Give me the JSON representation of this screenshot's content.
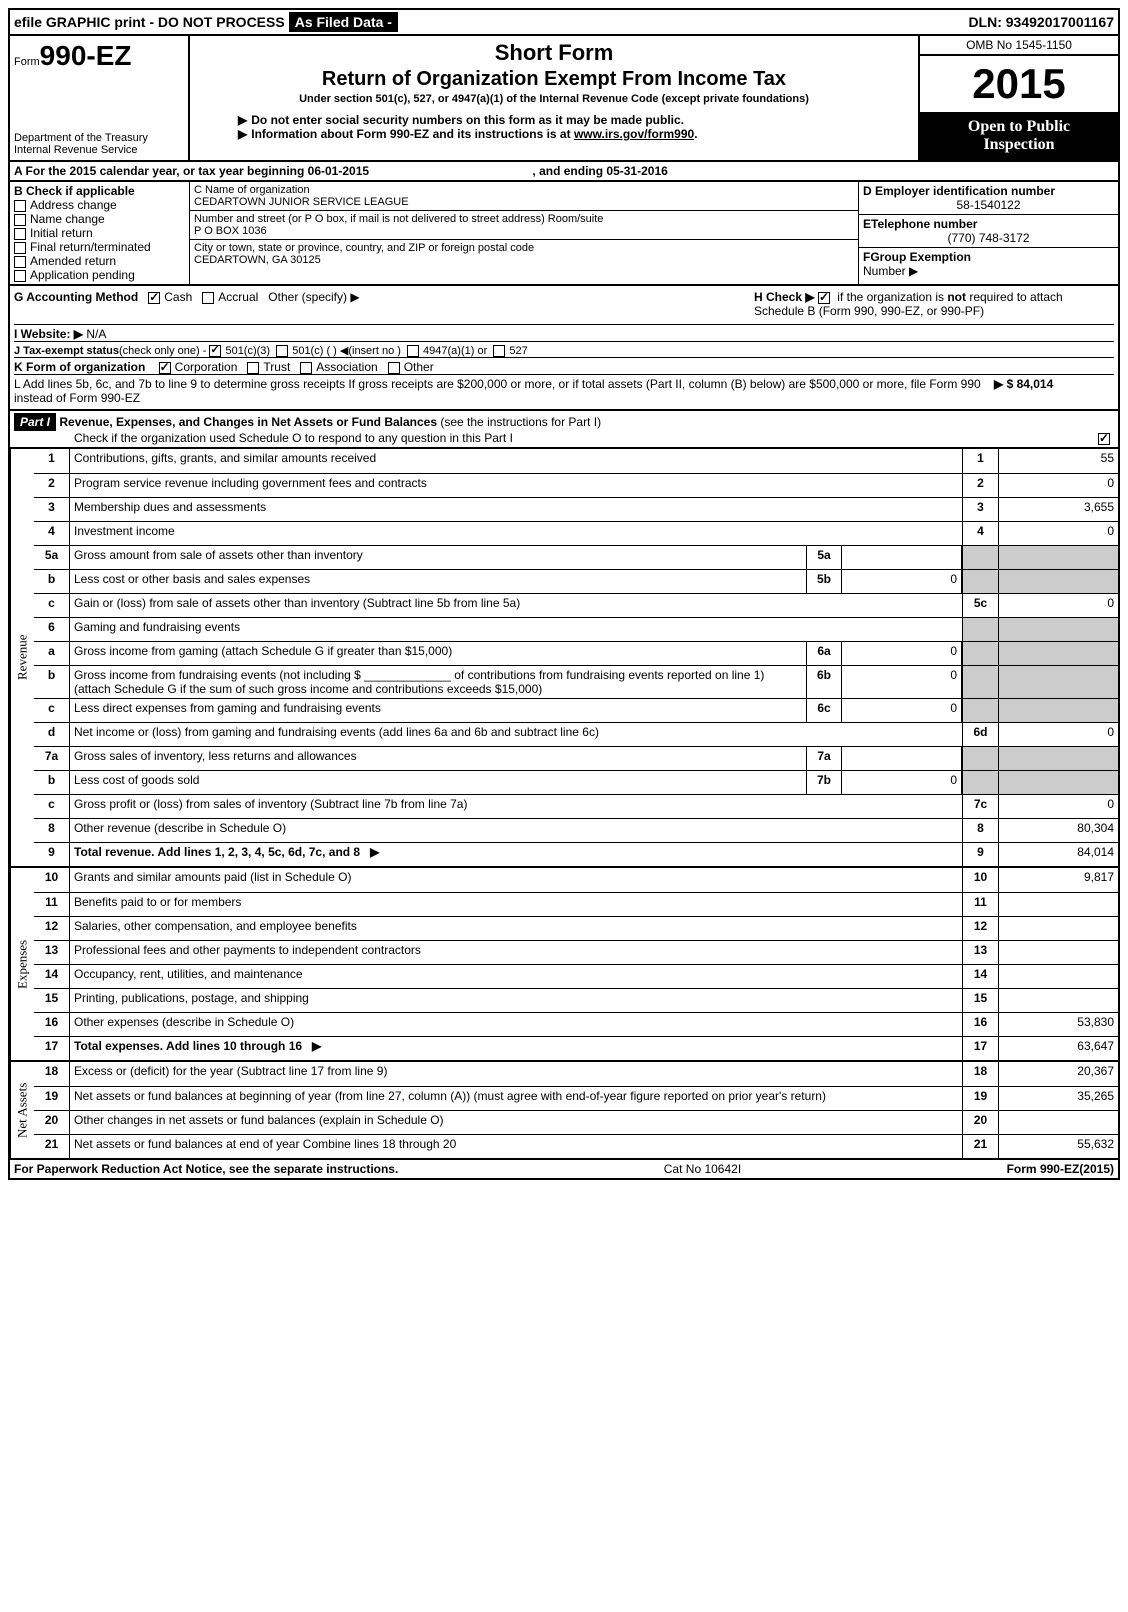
{
  "topbar": {
    "efile": "efile GRAPHIC print - DO NOT PROCESS",
    "asFiled": "As Filed Data -",
    "dln": "DLN: 93492017001167"
  },
  "header": {
    "formPrefix": "Form",
    "formNo": "990-EZ",
    "dept1": "Department of the Treasury",
    "dept2": "Internal Revenue Service",
    "shortForm": "Short Form",
    "title": "Return of Organization Exempt From Income Tax",
    "underSection": "Under section 501(c), 527, or 4947(a)(1) of the Internal Revenue Code (except private foundations)",
    "instr1": "Do not enter social security numbers on this form as it may be made public.",
    "instr2": "Information about Form 990-EZ and its instructions is at ",
    "instrLink": "www.irs.gov/form990",
    "omb": "OMB No 1545-1150",
    "year": "2015",
    "open1": "Open to Public",
    "open2": "Inspection"
  },
  "sectionA": {
    "calYear": "A  For the 2015 calendar year, or tax year beginning 06-01-2015",
    "ending": ", and ending 05-31-2016",
    "bLabel": "B  Check if applicable",
    "checks": [
      "Address change",
      "Name change",
      "Initial return",
      "Final return/terminated",
      "Amended return",
      "Application pending"
    ],
    "cNameLabel": "C Name of organization",
    "cName": "CEDARTOWN JUNIOR SERVICE LEAGUE",
    "streetLabel": "Number and street (or P O box, if mail is not delivered to street address) Room/suite",
    "street": "P O BOX 1036",
    "cityLabel": "City or town, state or province, country, and ZIP or foreign postal code",
    "city": "CEDARTOWN, GA  30125",
    "dLabel": "D Employer identification number",
    "dVal": "58-1540122",
    "eLabel": "ETelephone number",
    "eVal": "(770) 748-3172",
    "fLabel": "FGroup Exemption",
    "fLabel2": "Number    ▶"
  },
  "ghi": {
    "gLabel": "G Accounting Method",
    "cash": "Cash",
    "accrual": "Accrual",
    "other": "Other (specify) ▶",
    "hLabel": "H   Check ▶",
    "hText": "if the organization is not required to attach Schedule B (Form 990, 990-EZ, or 990-PF)",
    "iLabel": "I Website: ▶",
    "iVal": "N/A",
    "jLabel": "J Tax-exempt status",
    "jNote": "(check only one) -",
    "j1": "501(c)(3)",
    "j2": "501(c) (    ) ◀(insert no )",
    "j3": "4947(a)(1) or",
    "j4": "527",
    "kLabel": "K Form of organization",
    "kCorp": "Corporation",
    "kTrust": "Trust",
    "kAssoc": "Association",
    "kOther": "Other",
    "lText": "L Add lines 5b, 6c, and 7b to line 9 to determine gross receipts  If gross receipts are $200,000 or more, or if total assets (Part II, column (B) below) are $500,000 or more, file Form 990 instead of Form 990-EZ",
    "lVal": "▶ $ 84,014"
  },
  "part1": {
    "label": "Part I",
    "title": "Revenue, Expenses, and Changes in Net Assets or Fund Balances",
    "subtitle": "(see the instructions for Part I)",
    "checkText": "Check if the organization used Schedule O to respond to any question in this Part I"
  },
  "revenue": {
    "label": "Revenue",
    "lines": [
      {
        "n": "1",
        "desc": "Contributions, gifts, grants, and similar amounts received",
        "rn": "1",
        "rv": "55"
      },
      {
        "n": "2",
        "desc": "Program service revenue including government fees and contracts",
        "rn": "2",
        "rv": "0"
      },
      {
        "n": "3",
        "desc": "Membership dues and assessments",
        "rn": "3",
        "rv": "3,655"
      },
      {
        "n": "4",
        "desc": "Investment income",
        "rn": "4",
        "rv": "0"
      }
    ],
    "l5a": {
      "n": "5a",
      "desc": "Gross amount from sale of assets other than inventory",
      "mn": "5a",
      "mv": ""
    },
    "l5b": {
      "n": "b",
      "desc": "Less  cost or other basis and sales expenses",
      "mn": "5b",
      "mv": "0"
    },
    "l5c": {
      "n": "c",
      "desc": "Gain or (loss) from sale of assets other than inventory (Subtract line 5b from line 5a)",
      "rn": "5c",
      "rv": "0"
    },
    "l6": {
      "n": "6",
      "desc": "Gaming and fundraising events"
    },
    "l6a": {
      "n": "a",
      "desc": "Gross income from gaming (attach Schedule G if greater than $15,000)",
      "mn": "6a",
      "mv": "0"
    },
    "l6b": {
      "n": "b",
      "desc": "Gross income from fundraising events (not including $ _____________ of contributions from fundraising events reported on line 1) (attach Schedule G if the sum of such gross income and contributions exceeds $15,000)",
      "mn": "6b",
      "mv": "0"
    },
    "l6c": {
      "n": "c",
      "desc": "Less  direct expenses from gaming and fundraising events",
      "mn": "6c",
      "mv": "0"
    },
    "l6d": {
      "n": "d",
      "desc": "Net income or (loss) from gaming and fundraising events (add lines 6a and 6b and subtract line 6c)",
      "rn": "6d",
      "rv": "0"
    },
    "l7a": {
      "n": "7a",
      "desc": "Gross sales of inventory, less returns and allowances",
      "mn": "7a",
      "mv": ""
    },
    "l7b": {
      "n": "b",
      "desc": "Less  cost of goods sold",
      "mn": "7b",
      "mv": "0"
    },
    "l7c": {
      "n": "c",
      "desc": "Gross profit or (loss) from sales of inventory (Subtract line 7b from line 7a)",
      "rn": "7c",
      "rv": "0"
    },
    "l8": {
      "n": "8",
      "desc": "Other revenue (describe in Schedule O)",
      "rn": "8",
      "rv": "80,304"
    },
    "l9": {
      "n": "9",
      "desc": "Total revenue. Add lines 1, 2, 3, 4, 5c, 6d, 7c, and 8",
      "rn": "9",
      "rv": "84,014",
      "bold": true
    }
  },
  "expenses": {
    "label": "Expenses",
    "lines": [
      {
        "n": "10",
        "desc": "Grants and similar amounts paid (list in Schedule O)",
        "rn": "10",
        "rv": "9,817"
      },
      {
        "n": "11",
        "desc": "Benefits paid to or for members",
        "rn": "11",
        "rv": ""
      },
      {
        "n": "12",
        "desc": "Salaries, other compensation, and employee benefits",
        "rn": "12",
        "rv": ""
      },
      {
        "n": "13",
        "desc": "Professional fees and other payments to independent contractors",
        "rn": "13",
        "rv": ""
      },
      {
        "n": "14",
        "desc": "Occupancy, rent, utilities, and maintenance",
        "rn": "14",
        "rv": ""
      },
      {
        "n": "15",
        "desc": "Printing, publications, postage, and shipping",
        "rn": "15",
        "rv": ""
      },
      {
        "n": "16",
        "desc": "Other expenses (describe in Schedule O)",
        "rn": "16",
        "rv": "53,830"
      },
      {
        "n": "17",
        "desc": "Total expenses. Add lines 10 through 16",
        "rn": "17",
        "rv": "63,647",
        "bold": true
      }
    ]
  },
  "netassets": {
    "label": "Net Assets",
    "lines": [
      {
        "n": "18",
        "desc": "Excess or (deficit) for the year (Subtract line 17 from line 9)",
        "rn": "18",
        "rv": "20,367"
      },
      {
        "n": "19",
        "desc": "Net assets or fund balances at beginning of year (from line 27, column (A)) (must agree with end-of-year figure reported on prior year's return)",
        "rn": "19",
        "rv": "35,265"
      },
      {
        "n": "20",
        "desc": "Other changes in net assets or fund balances (explain in Schedule O)",
        "rn": "20",
        "rv": ""
      },
      {
        "n": "21",
        "desc": "Net assets or fund balances at end of year  Combine lines 18 through 20",
        "rn": "21",
        "rv": "55,632"
      }
    ]
  },
  "footer": {
    "left": "For Paperwork Reduction Act Notice, see the separate instructions.",
    "mid": "Cat No 10642I",
    "right": "Form 990-EZ (2015)"
  }
}
